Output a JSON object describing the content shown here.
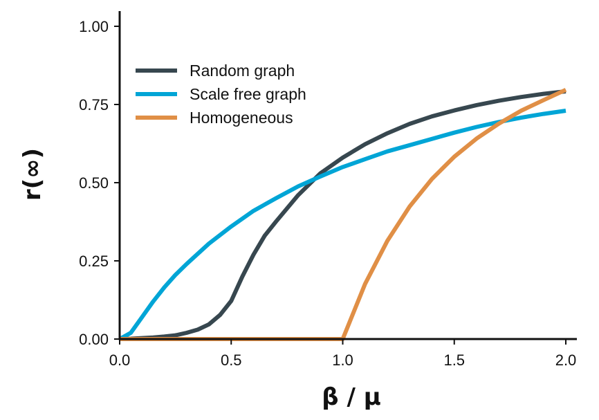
{
  "chart_data": {
    "type": "line",
    "xlabel": "β / μ",
    "ylabel": "r(∞)",
    "xlim": [
      0,
      2.0
    ],
    "ylim": [
      0,
      1.05
    ],
    "xticks": [
      "0.0",
      "0.5",
      "1.0",
      "1.5",
      "2.0"
    ],
    "xtick_values": [
      0,
      0.5,
      1.0,
      1.5,
      2.0
    ],
    "yticks": [
      "0.00",
      "0.25",
      "0.50",
      "0.75",
      "1.00"
    ],
    "ytick_values": [
      0,
      0.25,
      0.5,
      0.75,
      1.0
    ],
    "grid": false,
    "legend_position": "upper-left",
    "series": [
      {
        "name": "Random graph",
        "color": "#37474f",
        "x": [
          0,
          0.05,
          0.1,
          0.15,
          0.2,
          0.25,
          0.3,
          0.35,
          0.4,
          0.45,
          0.5,
          0.55,
          0.6,
          0.65,
          0.7,
          0.8,
          0.9,
          1.0,
          1.1,
          1.2,
          1.3,
          1.4,
          1.5,
          1.6,
          1.7,
          1.8,
          1.9,
          2.0
        ],
        "y": [
          0,
          0.001,
          0.003,
          0.005,
          0.008,
          0.012,
          0.02,
          0.03,
          0.047,
          0.077,
          0.122,
          0.2,
          0.27,
          0.33,
          0.375,
          0.46,
          0.53,
          0.58,
          0.623,
          0.658,
          0.688,
          0.712,
          0.731,
          0.748,
          0.762,
          0.774,
          0.784,
          0.792
        ]
      },
      {
        "name": "Scale free graph",
        "color": "#00a5d6",
        "x": [
          0,
          0.05,
          0.1,
          0.15,
          0.2,
          0.25,
          0.3,
          0.4,
          0.5,
          0.6,
          0.7,
          0.8,
          0.9,
          1.0,
          1.1,
          1.2,
          1.3,
          1.4,
          1.5,
          1.6,
          1.7,
          1.8,
          1.9,
          2.0
        ],
        "y": [
          0,
          0.02,
          0.07,
          0.12,
          0.165,
          0.205,
          0.24,
          0.305,
          0.36,
          0.41,
          0.45,
          0.488,
          0.52,
          0.55,
          0.575,
          0.6,
          0.62,
          0.64,
          0.66,
          0.678,
          0.694,
          0.708,
          0.72,
          0.73
        ]
      },
      {
        "name": "Homogeneous",
        "color": "#e08f46",
        "x": [
          0,
          0.5,
          1.0,
          1.1,
          1.2,
          1.3,
          1.4,
          1.5,
          1.6,
          1.7,
          1.8,
          1.9,
          2.0
        ],
        "y": [
          0,
          0,
          0,
          0.176,
          0.314,
          0.424,
          0.512,
          0.583,
          0.641,
          0.689,
          0.73,
          0.764,
          0.797
        ]
      }
    ]
  }
}
